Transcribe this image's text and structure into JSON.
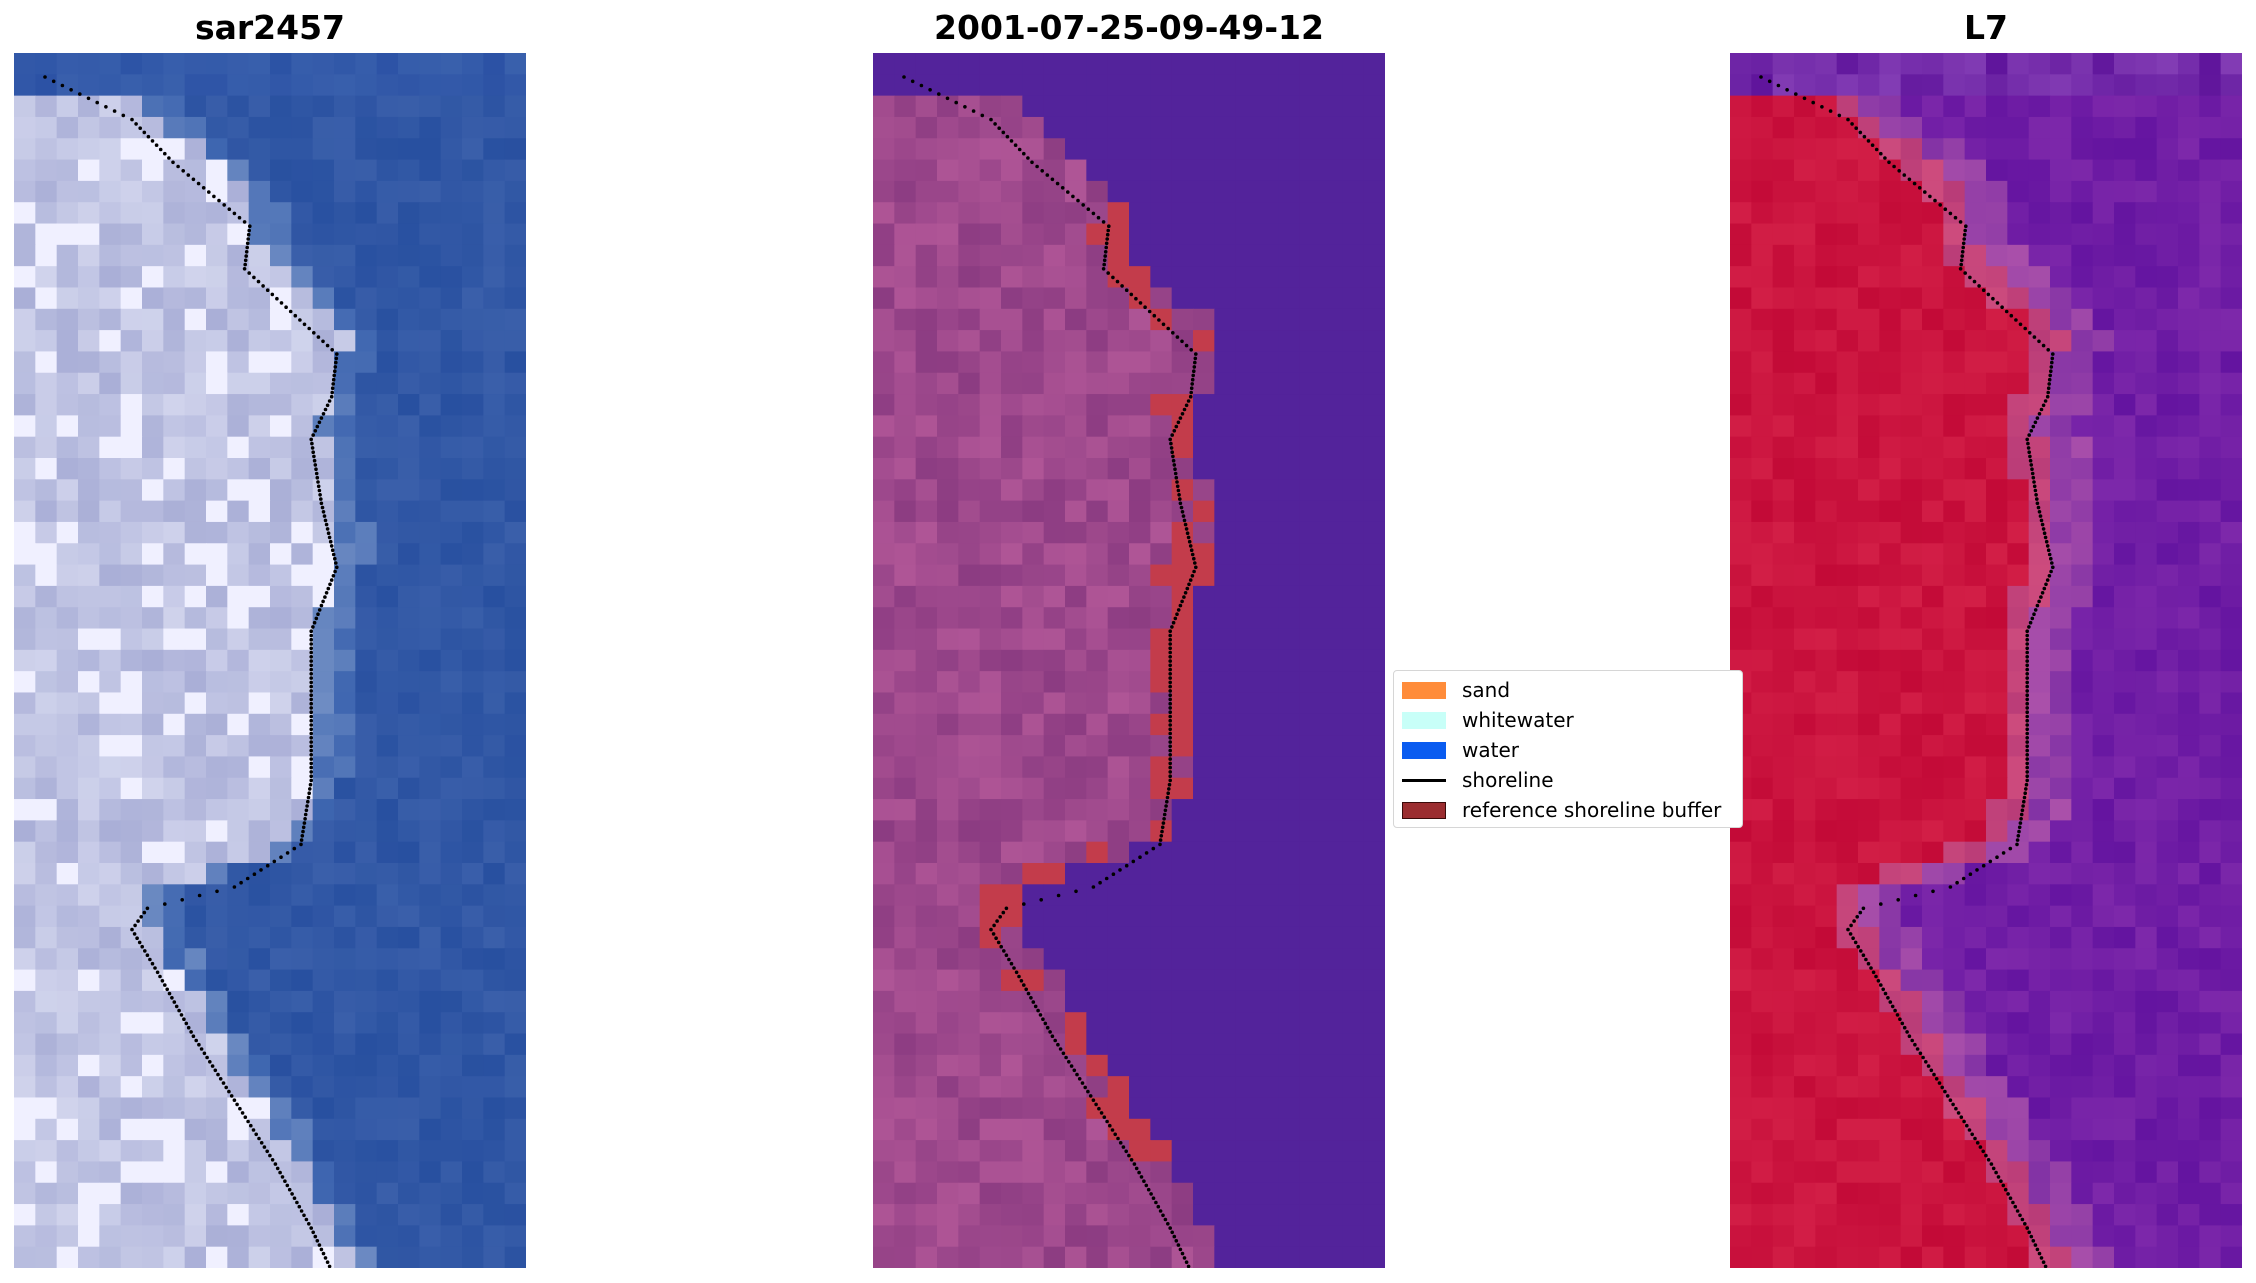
{
  "panels": [
    {
      "title": "sar2457",
      "palette": "rgb"
    },
    {
      "title": "2001-07-25-09-49-12",
      "palette": "classified"
    },
    {
      "title": "L7",
      "palette": "mndwi"
    }
  ],
  "legend": {
    "items": [
      {
        "label": "sand",
        "color": "#ff8c3a",
        "kind": "patch"
      },
      {
        "label": "whitewater",
        "color": "#c8fff8",
        "kind": "patch"
      },
      {
        "label": "water",
        "color": "#0a5cf0",
        "kind": "patch"
      },
      {
        "label": "shoreline",
        "color": "#000000",
        "kind": "line"
      },
      {
        "label": "reference shoreline buffer",
        "color": "#9b2d30",
        "kind": "patch-edged"
      }
    ]
  },
  "colors": {
    "rgb_water": "#2f55a6",
    "rgb_land": "#aab1d8",
    "rgb_bright": "#eef0ff",
    "class_water": "#53239b",
    "class_land": "#a2508f",
    "class_buffer": "#c33c4b",
    "mndwi_land": "#c70c3c",
    "mndwi_water": "#6f159f"
  }
}
